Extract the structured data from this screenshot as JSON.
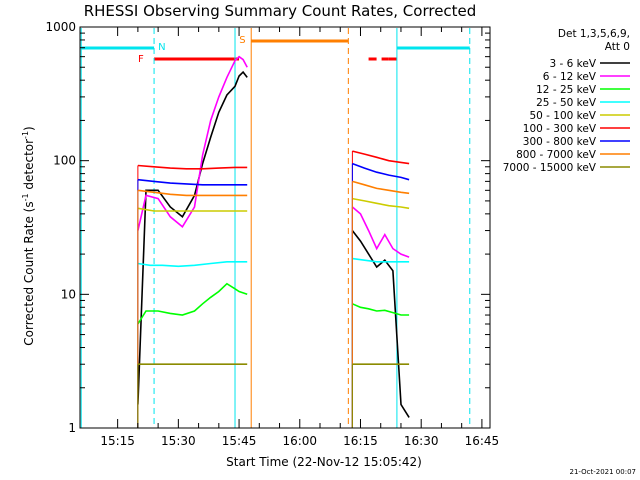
{
  "colors": {
    "bg": "#ffffff",
    "axis": "#000000",
    "attenuator": "#00e5ee",
    "flare_flag": "#ff0000",
    "saa_flag": "#ff7f00"
  },
  "chart_data": {
    "type": "line",
    "title": "RHESSI Observing Summary Count Rates, Corrected",
    "xlabel": "Start Time (22-Nov-12 15:05:42)",
    "ylabel_main": "Corrected Count Rate (s",
    "ylabel_sup1": "-1",
    "ylabel_mid": " detector",
    "ylabel_sup2": "-1",
    "ylabel_end": ")",
    "y_scale": "log",
    "ylim": [
      1,
      1000
    ],
    "y_ticks": [
      {
        "value": 1,
        "label": "1"
      },
      {
        "value": 10,
        "label": "10"
      },
      {
        "value": 100,
        "label": "100"
      },
      {
        "value": 1000,
        "label": "1000"
      }
    ],
    "xlim": [
      "15:05:42",
      "16:47:00"
    ],
    "x_ticks": [
      "15:15",
      "15:30",
      "15:45",
      "16:00",
      "16:15",
      "16:30",
      "16:45"
    ],
    "legend_header": [
      "Det 1,3,5,6,9,",
      "Att 0"
    ],
    "legend_position": "right",
    "timestamp": "21-Oct-2021 00:07",
    "markers": [
      {
        "label": "N",
        "time": "15:24",
        "color": "#00e5ee"
      },
      {
        "label": "F",
        "time": "15:23",
        "color": "#ff0000"
      },
      {
        "label": "S",
        "time": "15:48",
        "color": "#ff7f00"
      }
    ],
    "flag_bars": {
      "attenuator": [
        [
          "15:06",
          "15:24"
        ],
        [
          "16:24",
          "16:42"
        ]
      ],
      "flare": [
        [
          "15:24",
          "15:45"
        ],
        [
          "16:17",
          "16:22"
        ],
        [
          "16:22",
          "16:24"
        ]
      ],
      "saa": [
        [
          "15:48",
          "16:12"
        ]
      ]
    },
    "vlines": [
      {
        "time": "15:06",
        "color": "#00e5ee",
        "style": "solid"
      },
      {
        "time": "15:24",
        "color": "#00e5ee",
        "style": "dash"
      },
      {
        "time": "15:44",
        "color": "#00e5ee",
        "style": "solid"
      },
      {
        "time": "15:48",
        "color": "#ff7f00",
        "style": "solid"
      },
      {
        "time": "16:12",
        "color": "#ff7f00",
        "style": "dash"
      },
      {
        "time": "16:24",
        "color": "#00e5ee",
        "style": "solid"
      },
      {
        "time": "16:42",
        "color": "#00e5ee",
        "style": "dash"
      }
    ],
    "segments": [
      [
        "15:20",
        "15:47"
      ],
      [
        "16:13",
        "16:27"
      ]
    ],
    "series": [
      {
        "name": "3 - 6 keV",
        "color": "#000000",
        "points": [
          [
            "15:20",
            1.5
          ],
          [
            "15:22",
            60
          ],
          [
            "15:25",
            60
          ],
          [
            "15:28",
            45
          ],
          [
            "15:31",
            38
          ],
          [
            "15:34",
            55
          ],
          [
            "15:36",
            95
          ],
          [
            "15:38",
            150
          ],
          [
            "15:40",
            230
          ],
          [
            "15:42",
            310
          ],
          [
            "15:44",
            360
          ],
          [
            "15:45",
            430
          ],
          [
            "15:46",
            460
          ],
          [
            "15:47",
            420
          ],
          [
            "16:13",
            30
          ],
          [
            "16:15",
            25
          ],
          [
            "16:17",
            20
          ],
          [
            "16:19",
            16
          ],
          [
            "16:21",
            18
          ],
          [
            "16:23",
            15
          ],
          [
            "16:25",
            1.5
          ],
          [
            "16:27",
            1.2
          ]
        ]
      },
      {
        "name": "6 - 12 keV",
        "color": "#ff00ff",
        "points": [
          [
            "15:20",
            30
          ],
          [
            "15:22",
            55
          ],
          [
            "15:25",
            52
          ],
          [
            "15:28",
            38
          ],
          [
            "15:31",
            32
          ],
          [
            "15:34",
            45
          ],
          [
            "15:36",
            110
          ],
          [
            "15:38",
            200
          ],
          [
            "15:40",
            300
          ],
          [
            "15:42",
            420
          ],
          [
            "15:44",
            560
          ],
          [
            "15:45",
            600
          ],
          [
            "15:46",
            570
          ],
          [
            "15:47",
            500
          ],
          [
            "16:13",
            45
          ],
          [
            "16:15",
            40
          ],
          [
            "16:17",
            30
          ],
          [
            "16:19",
            22
          ],
          [
            "16:21",
            28
          ],
          [
            "16:23",
            22
          ],
          [
            "16:25",
            20
          ],
          [
            "16:27",
            19
          ]
        ]
      },
      {
        "name": "12 - 25 keV",
        "color": "#00ff00",
        "points": [
          [
            "15:20",
            6
          ],
          [
            "15:22",
            7.5
          ],
          [
            "15:25",
            7.5
          ],
          [
            "15:28",
            7.2
          ],
          [
            "15:31",
            7.0
          ],
          [
            "15:34",
            7.5
          ],
          [
            "15:36",
            8.5
          ],
          [
            "15:38",
            9.5
          ],
          [
            "15:40",
            10.5
          ],
          [
            "15:42",
            12
          ],
          [
            "15:44",
            11
          ],
          [
            "15:45",
            10.5
          ],
          [
            "15:47",
            10
          ],
          [
            "16:13",
            8.5
          ],
          [
            "16:15",
            8.0
          ],
          [
            "16:17",
            7.8
          ],
          [
            "16:19",
            7.5
          ],
          [
            "16:21",
            7.6
          ],
          [
            "16:23",
            7.3
          ],
          [
            "16:25",
            7.0
          ],
          [
            "16:27",
            7.0
          ]
        ]
      },
      {
        "name": "25 - 50 keV",
        "color": "#00ffff",
        "points": [
          [
            "15:20",
            17
          ],
          [
            "15:23",
            16.5
          ],
          [
            "15:26",
            16.5
          ],
          [
            "15:30",
            16.2
          ],
          [
            "15:34",
            16.5
          ],
          [
            "15:38",
            17
          ],
          [
            "15:42",
            17.5
          ],
          [
            "15:45",
            17.5
          ],
          [
            "15:47",
            17.5
          ],
          [
            "16:13",
            18.5
          ],
          [
            "16:16",
            18
          ],
          [
            "16:19",
            17.5
          ],
          [
            "16:22",
            17.5
          ],
          [
            "16:25",
            17.5
          ],
          [
            "16:27",
            17.5
          ]
        ]
      },
      {
        "name": "50 - 100 keV",
        "color": "#cccc00",
        "points": [
          [
            "15:20",
            44
          ],
          [
            "15:24",
            42
          ],
          [
            "15:28",
            42
          ],
          [
            "15:32",
            42
          ],
          [
            "15:36",
            42
          ],
          [
            "15:40",
            42
          ],
          [
            "15:44",
            42
          ],
          [
            "15:47",
            42
          ],
          [
            "16:13",
            52
          ],
          [
            "16:16",
            50
          ],
          [
            "16:19",
            48
          ],
          [
            "16:22",
            46
          ],
          [
            "16:25",
            45
          ],
          [
            "16:27",
            44
          ]
        ]
      },
      {
        "name": "100 - 300 keV",
        "color": "#ff0000",
        "points": [
          [
            "15:20",
            92
          ],
          [
            "15:24",
            90
          ],
          [
            "15:28",
            88
          ],
          [
            "15:32",
            87
          ],
          [
            "15:36",
            87
          ],
          [
            "15:40",
            88
          ],
          [
            "15:44",
            89
          ],
          [
            "15:47",
            89
          ],
          [
            "16:13",
            118
          ],
          [
            "16:16",
            112
          ],
          [
            "16:19",
            106
          ],
          [
            "16:22",
            100
          ],
          [
            "16:25",
            97
          ],
          [
            "16:27",
            95
          ]
        ]
      },
      {
        "name": "300 - 800 keV",
        "color": "#0000ff",
        "points": [
          [
            "15:20",
            72
          ],
          [
            "15:24",
            70
          ],
          [
            "15:28",
            68
          ],
          [
            "15:32",
            67
          ],
          [
            "15:36",
            66
          ],
          [
            "15:40",
            66
          ],
          [
            "15:44",
            66
          ],
          [
            "15:47",
            66
          ],
          [
            "16:13",
            95
          ],
          [
            "16:16",
            88
          ],
          [
            "16:19",
            82
          ],
          [
            "16:22",
            78
          ],
          [
            "16:25",
            75
          ],
          [
            "16:27",
            72
          ]
        ]
      },
      {
        "name": "800 - 7000 keV",
        "color": "#ff7f00",
        "points": [
          [
            "15:20",
            60
          ],
          [
            "15:24",
            58
          ],
          [
            "15:28",
            56
          ],
          [
            "15:32",
            55
          ],
          [
            "15:36",
            55
          ],
          [
            "15:40",
            55
          ],
          [
            "15:44",
            55
          ],
          [
            "15:47",
            55
          ],
          [
            "16:13",
            70
          ],
          [
            "16:16",
            66
          ],
          [
            "16:19",
            62
          ],
          [
            "16:22",
            60
          ],
          [
            "16:25",
            58
          ],
          [
            "16:27",
            57
          ]
        ]
      },
      {
        "name": "7000 - 15000 keV",
        "color": "#8b8b00",
        "points": [
          [
            "15:20",
            3.0
          ],
          [
            "15:24",
            3.0
          ],
          [
            "15:28",
            3.0
          ],
          [
            "15:32",
            3.0
          ],
          [
            "15:36",
            3.0
          ],
          [
            "15:40",
            3.0
          ],
          [
            "15:44",
            3.0
          ],
          [
            "15:47",
            3.0
          ],
          [
            "16:13",
            3.0
          ],
          [
            "16:16",
            3.0
          ],
          [
            "16:19",
            3.0
          ],
          [
            "16:22",
            3.0
          ],
          [
            "16:25",
            3.0
          ],
          [
            "16:27",
            3.0
          ]
        ]
      }
    ]
  }
}
